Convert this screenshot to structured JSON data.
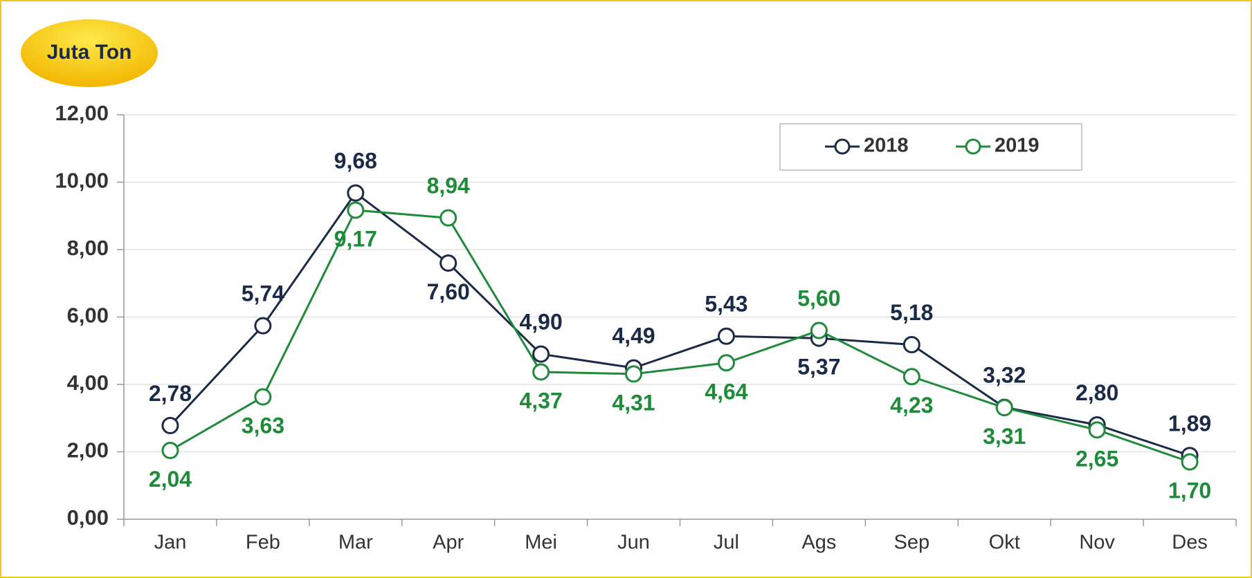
{
  "chart_data": {
    "type": "line",
    "badge": "Juta Ton",
    "categories": [
      "Jan",
      "Feb",
      "Mar",
      "Apr",
      "Mei",
      "Jun",
      "Jul",
      "Ags",
      "Sep",
      "Okt",
      "Nov",
      "Des"
    ],
    "series": [
      {
        "name": "2018",
        "color": "#1b2a47",
        "values": [
          2.78,
          5.74,
          9.68,
          7.6,
          4.9,
          4.49,
          5.43,
          5.37,
          5.18,
          3.32,
          2.8,
          1.89
        ],
        "value_labels": [
          "2,78",
          "5,74",
          "9,68",
          "7,60",
          "4,90",
          "4,49",
          "5,43",
          "5,37",
          "5,18",
          "3,32",
          "2,80",
          "1,89"
        ]
      },
      {
        "name": "2019",
        "color": "#1e8a3a",
        "values": [
          2.04,
          3.63,
          9.17,
          8.94,
          4.37,
          4.31,
          4.64,
          5.6,
          4.23,
          3.31,
          2.65,
          1.7
        ],
        "value_labels": [
          "2,04",
          "3,63",
          "9,17",
          "8,94",
          "4,37",
          "4,31",
          "4,64",
          "5,60",
          "4,23",
          "3,31",
          "2,65",
          "1,70"
        ]
      }
    ],
    "ylim": [
      0,
      12
    ],
    "yticks": [
      {
        "value": 0,
        "label": "0,00"
      },
      {
        "value": 2,
        "label": "2,00"
      },
      {
        "value": 4,
        "label": "4,00"
      },
      {
        "value": 6,
        "label": "6,00"
      },
      {
        "value": 8,
        "label": "8,00"
      },
      {
        "value": 10,
        "label": "10,00"
      },
      {
        "value": 12,
        "label": "12,00"
      }
    ],
    "grid": true,
    "legend": "top-right"
  }
}
